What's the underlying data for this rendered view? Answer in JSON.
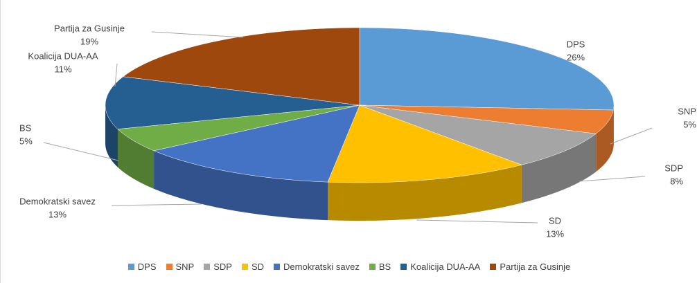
{
  "chart_data": {
    "type": "pie3d",
    "categories": [
      "DPS",
      "SNP",
      "SDP",
      "SD",
      "Demokratski savez",
      "BS",
      "Koalicija DUA-AA",
      "Partija za Gusinje"
    ],
    "values": [
      26,
      5,
      8,
      13,
      13,
      5,
      11,
      19
    ],
    "value_labels": [
      "26%",
      "5%",
      "8%",
      "13%",
      "13%",
      "5%",
      "11%",
      "19%"
    ],
    "colors": [
      "#5b9bd5",
      "#ed7d31",
      "#a5a5a5",
      "#ffc000",
      "#4472c4",
      "#70ad47",
      "#255e91",
      "#9e480e"
    ],
    "legend": "bottom"
  }
}
